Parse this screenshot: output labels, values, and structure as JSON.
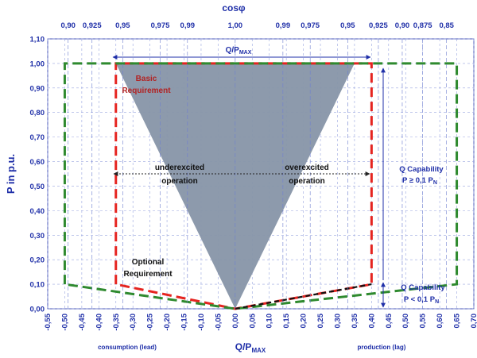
{
  "chart_data": {
    "type": "line",
    "x_axis": {
      "label": "Q/P",
      "label_sub": "MAX",
      "range": [
        -0.55,
        0.7
      ],
      "step": 0.05,
      "tick_labels": [
        "-0,55",
        "-0,50",
        "-0,45",
        "-0,40",
        "-0,35",
        "-0,30",
        "-0,25",
        "-0,20",
        "-0,15",
        "-0,10",
        "-0,05",
        "0,00",
        "0,05",
        "0,10",
        "0,15",
        "0,20",
        "0,25",
        "0,30",
        "0,35",
        "0,40",
        "0,45",
        "0,50",
        "0,55",
        "0,60",
        "0,65",
        "0,70"
      ],
      "left_caption": "consumption (lead)",
      "right_caption": "production (lag)"
    },
    "y_axis": {
      "label": "P in p.u.",
      "range": [
        0,
        1.1
      ],
      "step": 0.1,
      "tick_labels": [
        "0,00",
        "0,10",
        "0,20",
        "0,30",
        "0,40",
        "0,50",
        "0,60",
        "0,70",
        "0,80",
        "0,90",
        "1,00",
        "1,10"
      ]
    },
    "top_axis": {
      "label": "cosφ",
      "ticks": [
        {
          "x": -0.49,
          "label": "0,90"
        },
        {
          "x": -0.42,
          "label": "0,925"
        },
        {
          "x": -0.33,
          "label": "0,95"
        },
        {
          "x": -0.22,
          "label": "0,975"
        },
        {
          "x": -0.14,
          "label": "0,99"
        },
        {
          "x": 0.0,
          "label": "1,00"
        },
        {
          "x": 0.14,
          "label": "0,99"
        },
        {
          "x": 0.22,
          "label": "0,975"
        },
        {
          "x": 0.33,
          "label": "0,95"
        },
        {
          "x": 0.42,
          "label": "0,925"
        },
        {
          "x": 0.49,
          "label": "0,90"
        },
        {
          "x": 0.55,
          "label": "0,875"
        },
        {
          "x": 0.62,
          "label": "0,85"
        }
      ]
    },
    "series": [
      {
        "name": "Basic Requirement",
        "color": "#e52420",
        "style": "dashed",
        "points": [
          [
            -0.35,
            0.1
          ],
          [
            -0.35,
            1.0
          ],
          [
            0.4,
            1.0
          ],
          [
            0.4,
            0.1
          ],
          [
            0.0,
            0.0
          ],
          [
            -0.35,
            0.1
          ]
        ]
      },
      {
        "name": "Optional Requirement",
        "color": "#2f8a2f",
        "style": "dashed",
        "points": [
          [
            -0.5,
            0.1
          ],
          [
            -0.5,
            1.0
          ],
          [
            0.65,
            1.0
          ],
          [
            0.65,
            0.1
          ],
          [
            0.0,
            0.0
          ],
          [
            -0.5,
            0.1
          ]
        ]
      },
      {
        "name": "",
        "color": "#111111",
        "style": "dashed",
        "points": [
          [
            0.0,
            0.0
          ],
          [
            0.4,
            0.1
          ]
        ]
      }
    ],
    "shaded_region": {
      "color": "#8795a8",
      "points": [
        [
          -0.35,
          1.0
        ],
        [
          0.35,
          1.0
        ],
        [
          0.0,
          0.0
        ]
      ]
    },
    "annotations": {
      "qpmax_top": "Q/P",
      "qpmax_top_sub": "MAX",
      "basic_1": "Basic",
      "basic_2": "Requirement",
      "underexcited_1": "underexcited",
      "underexcited_2": "operation",
      "overexcited_1": "overexcited",
      "overexcited_2": "operation",
      "optional_1": "Optional",
      "optional_2": "Requirement",
      "qcap1_1": "Q Capability",
      "qcap1_2": "P ≥ 0,1 P",
      "qcap1_sub": "N",
      "qcap2_1": "Q Capability",
      "qcap2_2": "P < 0,1 P",
      "qcap2_sub": "N"
    },
    "grid": true
  }
}
